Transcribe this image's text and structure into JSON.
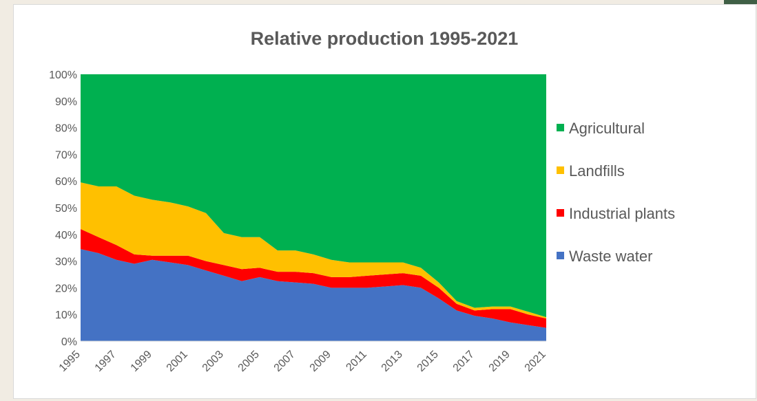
{
  "chart_data": {
    "type": "area",
    "stacked": "percent",
    "title": "Relative production 1995-2021",
    "xlabel": "",
    "ylabel": "",
    "ylim": [
      0,
      100
    ],
    "y_ticks": [
      "0%",
      "10%",
      "20%",
      "30%",
      "40%",
      "50%",
      "60%",
      "70%",
      "80%",
      "90%",
      "100%"
    ],
    "x": [
      1995,
      1996,
      1997,
      1998,
      1999,
      2000,
      2001,
      2002,
      2003,
      2004,
      2005,
      2006,
      2007,
      2008,
      2009,
      2010,
      2011,
      2012,
      2013,
      2014,
      2015,
      2016,
      2017,
      2018,
      2019,
      2020,
      2021
    ],
    "x_ticks": [
      "1995",
      "1997",
      "1999",
      "2001",
      "2003",
      "2005",
      "2007",
      "2009",
      "2011",
      "2013",
      "2015",
      "2017",
      "2019",
      "2021"
    ],
    "legend_position": "right",
    "series": [
      {
        "name": "Waste water",
        "color": "#4472c4",
        "values": [
          34.5,
          33,
          30.5,
          29,
          30.5,
          29.5,
          28.5,
          26.5,
          24.5,
          22.5,
          24,
          22.5,
          22,
          21.5,
          20,
          20,
          20,
          20.5,
          21,
          20,
          16,
          11.5,
          9.5,
          8.5,
          7,
          6,
          5
        ]
      },
      {
        "name": "Industrial plants",
        "color": "#ff0000",
        "values": [
          7.5,
          6,
          5.5,
          3.5,
          1.5,
          2.5,
          3.5,
          3.5,
          4,
          4.5,
          3.5,
          3.5,
          4,
          4,
          4,
          4,
          4.5,
          4.5,
          4.5,
          4.5,
          4,
          2.5,
          2,
          3.5,
          5,
          4,
          3.5
        ]
      },
      {
        "name": "Landfills",
        "color": "#ffc000",
        "values": [
          17.5,
          19,
          22,
          22,
          21,
          20,
          18.5,
          18,
          12,
          12,
          11.5,
          8,
          8,
          7,
          6.5,
          5.5,
          5,
          4.5,
          4,
          3,
          2,
          1,
          1,
          1,
          1,
          1,
          0.5
        ]
      },
      {
        "name": "Agricultural",
        "color": "#00b050",
        "values": [
          40.5,
          42,
          42,
          45.5,
          47,
          48,
          49.5,
          52,
          59.5,
          61,
          61,
          66,
          66,
          67.5,
          69.5,
          70.5,
          70.5,
          70.5,
          70.5,
          72.5,
          78,
          85,
          87.5,
          87,
          87,
          89,
          91
        ]
      }
    ],
    "legend_order": [
      "Agricultural",
      "Landfills",
      "Industrial plants",
      "Waste water"
    ]
  }
}
